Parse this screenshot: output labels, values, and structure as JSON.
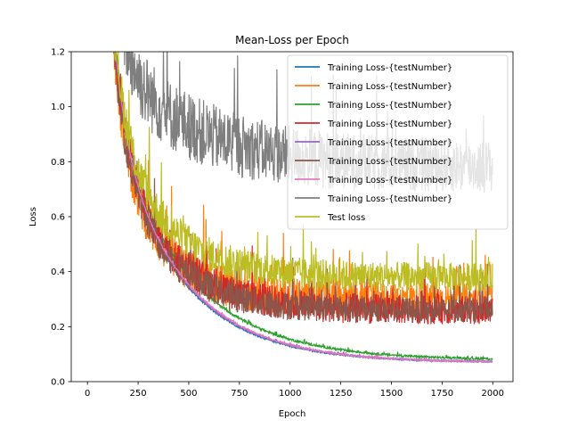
{
  "chart_data": {
    "type": "line",
    "title": "Mean-Loss per Epoch",
    "xlabel": "Epoch",
    "ylabel": "Loss",
    "xlim": [
      -80,
      2100
    ],
    "ylim": [
      0.0,
      1.2
    ],
    "xticks": [
      0,
      250,
      500,
      750,
      1000,
      1250,
      1500,
      1750,
      2000
    ],
    "xtick_labels": [
      "0",
      "250",
      "500",
      "750",
      "1000",
      "1250",
      "1500",
      "1750",
      "2000"
    ],
    "yticks": [
      0.0,
      0.2,
      0.4,
      0.6,
      0.8,
      1.0,
      1.2
    ],
    "ytick_labels": [
      "0.0",
      "0.2",
      "0.4",
      "0.6",
      "0.8",
      "1.0",
      "1.2"
    ],
    "grid": false,
    "legend_position": "top-right",
    "series": [
      {
        "name": "Training Loss-{testNumber}",
        "color": "#1f77b4",
        "start": 1.3,
        "end": 0.07,
        "k": 330,
        "noise": 0.004,
        "points": [
          [
            110,
            1.3
          ],
          [
            150,
            0.9
          ],
          [
            200,
            0.62
          ],
          [
            250,
            0.46
          ],
          [
            300,
            0.38
          ],
          [
            400,
            0.28
          ],
          [
            500,
            0.22
          ],
          [
            750,
            0.155
          ],
          [
            1000,
            0.12
          ],
          [
            1250,
            0.1
          ],
          [
            1500,
            0.088
          ],
          [
            1750,
            0.078
          ],
          [
            2000,
            0.072
          ]
        ]
      },
      {
        "name": "Training Loss-{testNumber}",
        "color": "#ff7f0e",
        "start": 1.3,
        "end": 0.3,
        "k": 220,
        "noise": 0.09,
        "points": [
          [
            150,
            1.25
          ],
          [
            250,
            0.9
          ],
          [
            500,
            0.55
          ],
          [
            750,
            0.42
          ],
          [
            1000,
            0.38
          ],
          [
            1250,
            0.34
          ],
          [
            1500,
            0.33
          ],
          [
            1750,
            0.32
          ],
          [
            2000,
            0.31
          ]
        ]
      },
      {
        "name": "Training Loss-{testNumber}",
        "color": "#2ca02c",
        "start": 1.3,
        "end": 0.078,
        "k": 360,
        "noise": 0.006,
        "points": [
          [
            110,
            1.3
          ],
          [
            200,
            0.68
          ],
          [
            300,
            0.42
          ],
          [
            500,
            0.26
          ],
          [
            750,
            0.17
          ],
          [
            1000,
            0.13
          ],
          [
            1250,
            0.11
          ],
          [
            1500,
            0.095
          ],
          [
            1750,
            0.085
          ],
          [
            2000,
            0.078
          ]
        ]
      },
      {
        "name": "Training Loss-{testNumber}",
        "color": "#d62728",
        "start": 1.3,
        "end": 0.26,
        "k": 260,
        "noise": 0.08,
        "points": [
          [
            150,
            1.25
          ],
          [
            250,
            0.95
          ],
          [
            500,
            0.55
          ],
          [
            750,
            0.42
          ],
          [
            1000,
            0.36
          ],
          [
            1250,
            0.31
          ],
          [
            1500,
            0.29
          ],
          [
            1750,
            0.28
          ],
          [
            2000,
            0.27
          ]
        ]
      },
      {
        "name": "Training Loss-{testNumber}",
        "color": "#9467bd",
        "start": 1.3,
        "end": 0.07,
        "k": 335,
        "noise": 0.004,
        "points": [
          [
            110,
            1.3
          ],
          [
            200,
            0.63
          ],
          [
            300,
            0.39
          ],
          [
            500,
            0.23
          ],
          [
            750,
            0.155
          ],
          [
            1000,
            0.12
          ],
          [
            1250,
            0.1
          ],
          [
            1500,
            0.088
          ],
          [
            1750,
            0.078
          ],
          [
            2000,
            0.072
          ]
        ]
      },
      {
        "name": "Training Loss-{testNumber}",
        "color": "#8c564b",
        "start": 1.3,
        "end": 0.26,
        "k": 240,
        "noise": 0.07,
        "points": [
          [
            150,
            1.2
          ],
          [
            250,
            0.85
          ],
          [
            500,
            0.48
          ],
          [
            750,
            0.38
          ],
          [
            1000,
            0.34
          ],
          [
            1250,
            0.3
          ],
          [
            1500,
            0.29
          ],
          [
            1750,
            0.28
          ],
          [
            2000,
            0.27
          ]
        ]
      },
      {
        "name": "Training Loss-{testNumber}",
        "color": "#e377c2",
        "start": 1.3,
        "end": 0.069,
        "k": 340,
        "noise": 0.004,
        "points": [
          [
            110,
            1.3
          ],
          [
            200,
            0.64
          ],
          [
            300,
            0.4
          ],
          [
            500,
            0.235
          ],
          [
            750,
            0.155
          ],
          [
            1000,
            0.118
          ],
          [
            1250,
            0.098
          ],
          [
            1500,
            0.086
          ],
          [
            1750,
            0.077
          ],
          [
            2000,
            0.07
          ]
        ]
      },
      {
        "name": "Training Loss-{testNumber}",
        "color": "#7f7f7f",
        "start": 1.3,
        "end": 0.78,
        "k": 400,
        "noise": 0.15,
        "points": [
          [
            200,
            1.3
          ],
          [
            500,
            1.1
          ],
          [
            750,
            1.0
          ],
          [
            1000,
            0.92
          ],
          [
            1250,
            0.88
          ],
          [
            1500,
            0.82
          ],
          [
            1750,
            0.8
          ],
          [
            2000,
            0.78
          ]
        ]
      },
      {
        "name": "Test loss",
        "color": "#bcbd22",
        "start": 1.3,
        "end": 0.38,
        "k": 250,
        "noise": 0.08,
        "points": [
          [
            150,
            1.3
          ],
          [
            250,
            1.0
          ],
          [
            500,
            0.7
          ],
          [
            750,
            0.56
          ],
          [
            1000,
            0.48
          ],
          [
            1250,
            0.44
          ],
          [
            1500,
            0.41
          ],
          [
            1750,
            0.4
          ],
          [
            2000,
            0.38
          ]
        ]
      }
    ]
  }
}
